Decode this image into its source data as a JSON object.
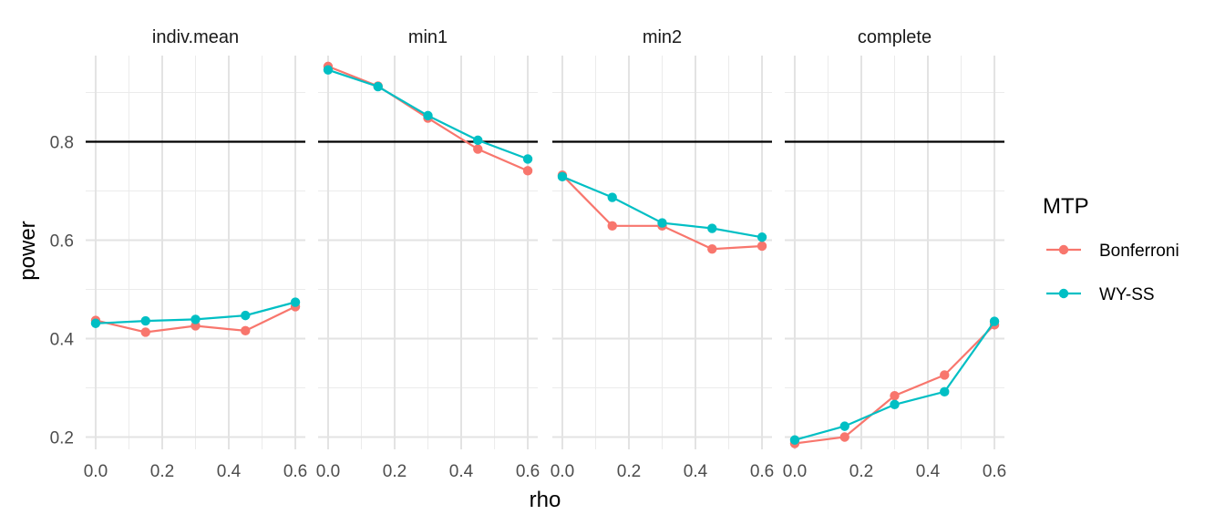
{
  "chart_data": {
    "type": "line",
    "facets": [
      "indiv.mean",
      "min1",
      "min2",
      "complete"
    ],
    "x": [
      0.0,
      0.15,
      0.3,
      0.45,
      0.6
    ],
    "x_ticks": [
      0.0,
      0.2,
      0.4,
      0.6
    ],
    "x_tick_labels": [
      "0.0",
      "0.2",
      "0.4",
      "0.6"
    ],
    "xlim": [
      -0.03,
      0.63
    ],
    "y_ticks": [
      0.2,
      0.4,
      0.6,
      0.8
    ],
    "y_tick_labels": [
      "0.2",
      "0.4",
      "0.6",
      "0.8"
    ],
    "ylim": [
      0.175,
      0.975
    ],
    "xlabel": "rho",
    "ylabel": "power",
    "hline": 0.8,
    "legend": {
      "title": "MTP",
      "position": "right"
    },
    "grid": true,
    "series": [
      {
        "name": "Bonferroni",
        "color": "#F8766D",
        "values": {
          "indiv.mean": [
            0.437,
            0.413,
            0.426,
            0.416,
            0.465
          ],
          "min1": [
            0.953,
            0.913,
            0.848,
            0.785,
            0.741
          ],
          "min2": [
            0.732,
            0.629,
            0.629,
            0.582,
            0.588
          ],
          "complete": [
            0.187,
            0.2,
            0.284,
            0.326,
            0.428
          ]
        }
      },
      {
        "name": "WY-SS",
        "color": "#00BFC4",
        "values": {
          "indiv.mean": [
            0.431,
            0.436,
            0.439,
            0.447,
            0.474
          ],
          "min1": [
            0.946,
            0.912,
            0.853,
            0.803,
            0.765
          ],
          "min2": [
            0.729,
            0.687,
            0.635,
            0.624,
            0.606
          ],
          "complete": [
            0.194,
            0.222,
            0.266,
            0.292,
            0.435
          ]
        }
      }
    ]
  }
}
